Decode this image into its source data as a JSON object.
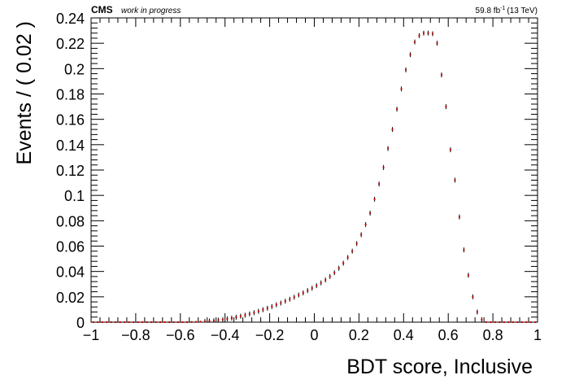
{
  "header": {
    "experiment": "CMS",
    "status": "work in progress",
    "lumi_value": "59.8 fb",
    "lumi_exponent": "-1",
    "lumi_energy": "(13 TeV)"
  },
  "chart_data": {
    "type": "scatter",
    "title": "",
    "xlabel": "BDT score, Inclusive",
    "ylabel": "Events / ( 0.02 )",
    "xlim": [
      -1,
      1
    ],
    "ylim": [
      0,
      0.24
    ],
    "grid": false,
    "legend": "none",
    "x_ticks": [
      -1,
      -0.8,
      -0.6,
      -0.4,
      -0.2,
      0,
      0.2,
      0.4,
      0.6,
      0.8,
      1
    ],
    "x_tick_labels": [
      "−1",
      "−0.8",
      "−0.6",
      "−0.4",
      "−0.2",
      "0",
      "0.2",
      "0.4",
      "0.6",
      "0.8",
      "1"
    ],
    "y_ticks": [
      0,
      0.02,
      0.04,
      0.06,
      0.08,
      0.1,
      0.12,
      0.14,
      0.16,
      0.18,
      0.2,
      0.22,
      0.24
    ],
    "y_tick_labels": [
      "0",
      "0.02",
      "0.04",
      "0.06",
      "0.08",
      "0.1",
      "0.12",
      "0.14",
      "0.16",
      "0.18",
      "0.2",
      "0.22",
      "0.24"
    ],
    "marker_color": "#cc0000",
    "errorbar_color": "#000000",
    "x": [
      -0.99,
      -0.97,
      -0.95,
      -0.93,
      -0.91,
      -0.89,
      -0.87,
      -0.85,
      -0.83,
      -0.81,
      -0.79,
      -0.77,
      -0.75,
      -0.73,
      -0.71,
      -0.69,
      -0.67,
      -0.65,
      -0.63,
      -0.61,
      -0.59,
      -0.57,
      -0.55,
      -0.53,
      -0.51,
      -0.49,
      -0.47,
      -0.45,
      -0.43,
      -0.41,
      -0.39,
      -0.37,
      -0.35,
      -0.33,
      -0.31,
      -0.29,
      -0.27,
      -0.25,
      -0.23,
      -0.21,
      -0.19,
      -0.17,
      -0.15,
      -0.13,
      -0.11,
      -0.09,
      -0.07,
      -0.05,
      -0.03,
      -0.01,
      0.01,
      0.03,
      0.05,
      0.07,
      0.09,
      0.11,
      0.13,
      0.15,
      0.17,
      0.19,
      0.21,
      0.23,
      0.25,
      0.27,
      0.29,
      0.31,
      0.33,
      0.35,
      0.37,
      0.39,
      0.41,
      0.43,
      0.45,
      0.47,
      0.49,
      0.51,
      0.53,
      0.55,
      0.57,
      0.59,
      0.61,
      0.63,
      0.65,
      0.67,
      0.69,
      0.71,
      0.73,
      0.75,
      0.77,
      0.79,
      0.81,
      0.83,
      0.85,
      0.87,
      0.89,
      0.91,
      0.93,
      0.95,
      0.97,
      0.99
    ],
    "y": [
      0,
      0,
      0,
      0,
      0,
      0,
      0,
      0,
      0,
      0,
      0,
      0,
      0,
      0,
      0,
      0,
      0,
      0,
      0,
      0,
      0,
      0,
      0.0001,
      0.0002,
      0.0004,
      0.0006,
      0.0009,
      0.0012,
      0.0016,
      0.002,
      0.0026,
      0.0032,
      0.0039,
      0.0047,
      0.0055,
      0.0065,
      0.0075,
      0.0086,
      0.0098,
      0.011,
      0.0123,
      0.0137,
      0.0151,
      0.0166,
      0.0181,
      0.0197,
      0.0214,
      0.0231,
      0.0249,
      0.0268,
      0.0288,
      0.031,
      0.0333,
      0.036,
      0.039,
      0.0425,
      0.0465,
      0.051,
      0.056,
      0.062,
      0.069,
      0.077,
      0.086,
      0.097,
      0.109,
      0.122,
      0.137,
      0.152,
      0.168,
      0.184,
      0.199,
      0.211,
      0.221,
      0.226,
      0.228,
      0.228,
      0.2275,
      0.22,
      0.195,
      0.17,
      0.136,
      0.112,
      0.083,
      0.057,
      0.037,
      0.02,
      0.008,
      0.002,
      0,
      0,
      0,
      0,
      0,
      0,
      0,
      0,
      0,
      0,
      0,
      0
    ]
  }
}
